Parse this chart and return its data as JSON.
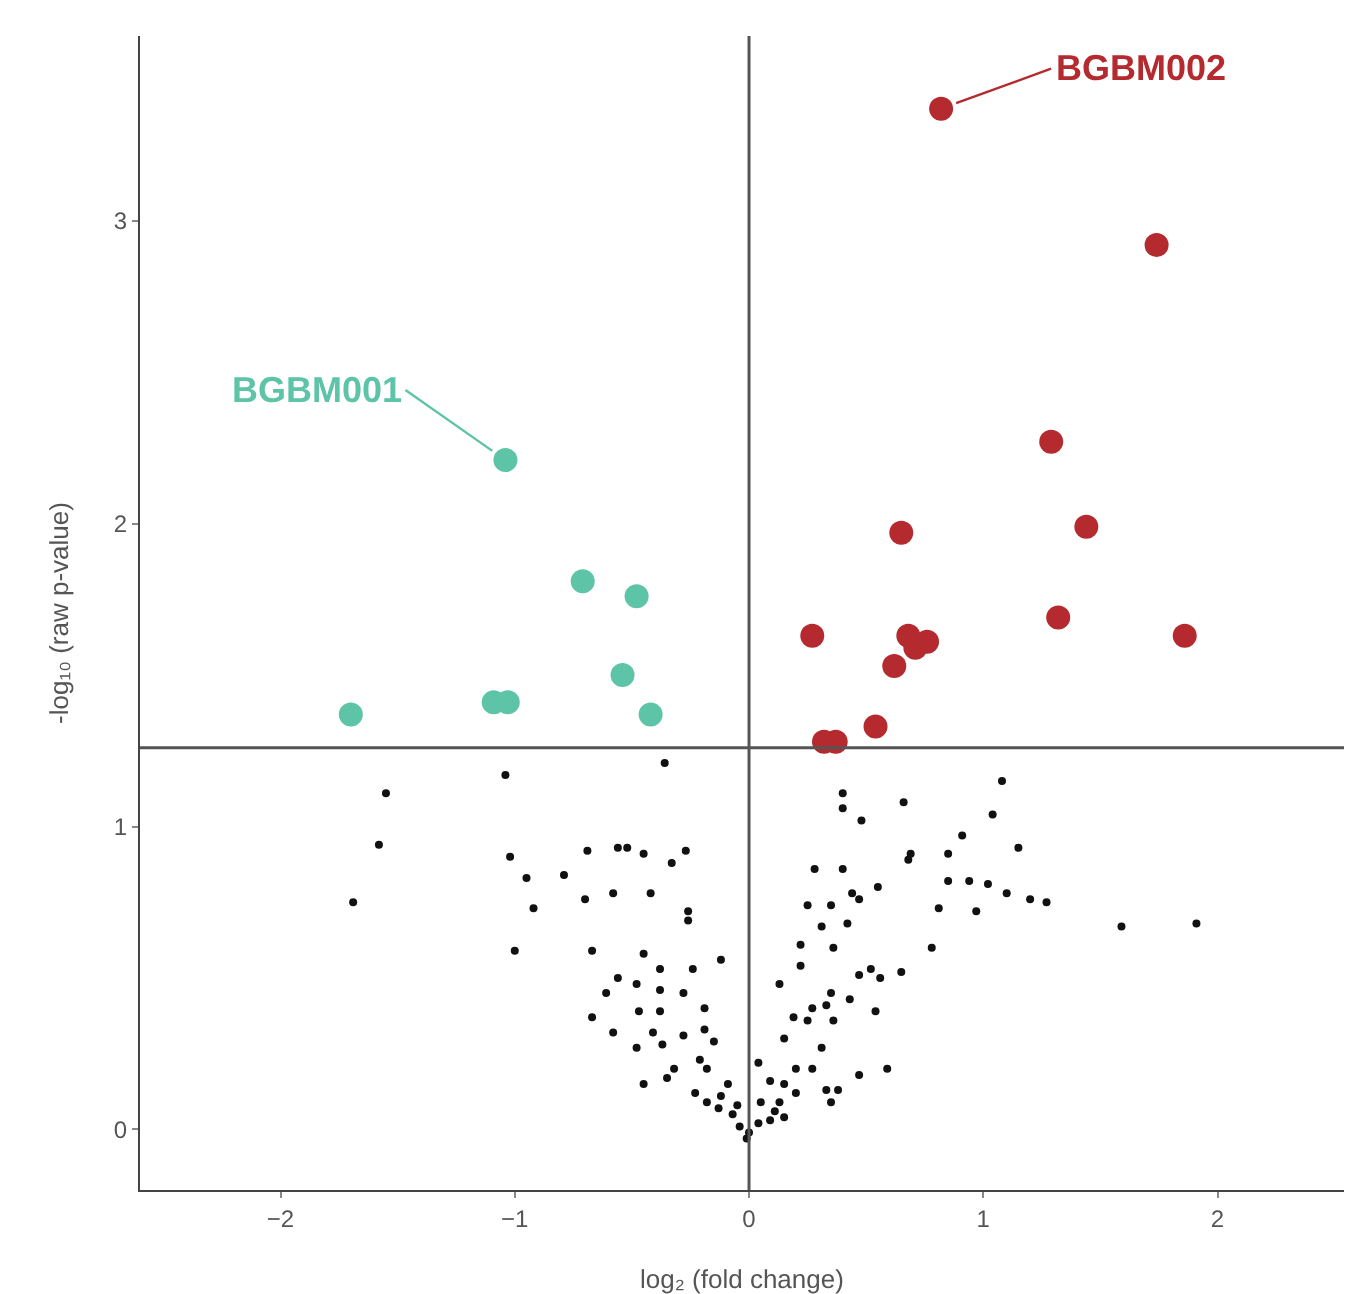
{
  "chart_data": {
    "type": "scatter",
    "xlabel": "log₂ (fold change)",
    "ylabel": "-log₁₀ (raw p-value)",
    "xlim": [
      -2.6,
      2.54
    ],
    "ylim": [
      -0.2,
      3.61
    ],
    "xticks": [
      {
        "value": -2,
        "label": "−2"
      },
      {
        "value": -1,
        "label": "−1"
      },
      0,
      1,
      2
    ],
    "yticks": [
      0,
      1,
      2,
      3
    ],
    "grid": false,
    "marker": "circle",
    "ref_lines": [
      {
        "axis": "y",
        "value": 1.26,
        "color": "#555555"
      },
      {
        "axis": "x",
        "value": 0,
        "color": "#555555"
      }
    ],
    "annotations": [
      {
        "text": "BGBM001",
        "x": -1.04,
        "y": 2.21
      },
      {
        "text": "BGBM002",
        "x": 0.82,
        "y": 3.37
      }
    ],
    "series": [
      {
        "color": "#5ec4a8",
        "x": [
          -1.04,
          -0.71,
          -0.48,
          -0.54,
          -0.42,
          -1.09,
          -1.03,
          -1.7
        ],
        "values": [
          2.21,
          1.81,
          1.76,
          1.5,
          1.37,
          1.41,
          1.41,
          1.37
        ]
      },
      {
        "color": "#b52a2e",
        "x": [
          0.82,
          1.74,
          1.29,
          1.44,
          0.65,
          1.32,
          1.86,
          0.27,
          0.62,
          0.68,
          0.71,
          0.76,
          0.54,
          0.32,
          0.37
        ],
        "values": [
          3.37,
          2.92,
          2.27,
          1.99,
          1.97,
          1.69,
          1.63,
          1.63,
          1.53,
          1.63,
          1.59,
          1.61,
          1.33,
          1.28,
          1.28
        ]
      },
      {
        "color": "#111111",
        "x": [
          -0.36,
          -1.55,
          -1.04,
          -1.58,
          -1.69,
          -1.02,
          -0.95,
          -0.92,
          -1.0,
          -0.79,
          -0.69,
          -0.56,
          -0.52,
          -0.45,
          -0.33,
          -0.27,
          -0.7,
          -0.58,
          -0.42,
          -0.26,
          -0.26,
          -0.67,
          -0.45,
          -0.12,
          -0.56,
          -0.38,
          -0.24,
          -0.61,
          -0.48,
          -0.38,
          -0.28,
          -0.67,
          -0.47,
          -0.38,
          -0.19,
          -0.58,
          -0.41,
          -0.28,
          -0.19,
          -0.48,
          -0.37,
          -0.15,
          -0.32,
          -0.21,
          -0.45,
          -0.35,
          -0.18,
          -0.23,
          -0.18,
          -0.13,
          -0.09,
          -0.07,
          -0.04,
          -0.01,
          -0.12,
          -0.05,
          0.4,
          0.4,
          0.48,
          0.66,
          1.08,
          1.04,
          1.15,
          0.91,
          0.69,
          0.68,
          0.85,
          0.28,
          0.4,
          0.85,
          0.94,
          1.02,
          1.1,
          1.2,
          1.27,
          1.59,
          1.91,
          0.55,
          0.44,
          0.47,
          0.25,
          0.35,
          0.81,
          0.97,
          0.31,
          0.42,
          0.78,
          0.22,
          0.36,
          0.65,
          0.52,
          0.56,
          0.47,
          0.13,
          0.22,
          0.35,
          0.43,
          0.54,
          0.27,
          0.33,
          0.19,
          0.25,
          0.36,
          0.15,
          0.31,
          0.59,
          0.47,
          0.2,
          0.27,
          0.33,
          0.38,
          0.35,
          0.04,
          0.09,
          0.15,
          0.2,
          0.05,
          0.11,
          0.15,
          0.04,
          0.09,
          0.13,
          0.0
        ],
        "values": [
          1.21,
          1.11,
          1.17,
          0.94,
          0.75,
          0.9,
          0.83,
          0.73,
          0.59,
          0.84,
          0.92,
          0.93,
          0.93,
          0.91,
          0.88,
          0.92,
          0.76,
          0.78,
          0.78,
          0.72,
          0.69,
          0.59,
          0.58,
          0.56,
          0.5,
          0.53,
          0.53,
          0.45,
          0.48,
          0.46,
          0.45,
          0.37,
          0.39,
          0.39,
          0.4,
          0.32,
          0.32,
          0.31,
          0.33,
          0.27,
          0.28,
          0.29,
          0.2,
          0.23,
          0.15,
          0.17,
          0.2,
          0.12,
          0.09,
          0.07,
          0.15,
          0.05,
          0.01,
          -0.03,
          0.11,
          0.08,
          1.11,
          1.06,
          1.02,
          1.08,
          1.15,
          1.04,
          0.93,
          0.97,
          0.91,
          0.89,
          0.91,
          0.86,
          0.86,
          0.82,
          0.82,
          0.81,
          0.78,
          0.76,
          0.75,
          0.67,
          0.68,
          0.8,
          0.78,
          0.76,
          0.74,
          0.74,
          0.73,
          0.72,
          0.67,
          0.68,
          0.6,
          0.61,
          0.6,
          0.52,
          0.53,
          0.5,
          0.51,
          0.48,
          0.54,
          0.45,
          0.43,
          0.39,
          0.4,
          0.41,
          0.37,
          0.36,
          0.36,
          0.3,
          0.27,
          0.2,
          0.18,
          0.2,
          0.2,
          0.13,
          0.13,
          0.09,
          0.22,
          0.16,
          0.15,
          0.12,
          0.09,
          0.06,
          0.04,
          0.02,
          0.03,
          0.09,
          -0.01
        ]
      }
    ]
  }
}
